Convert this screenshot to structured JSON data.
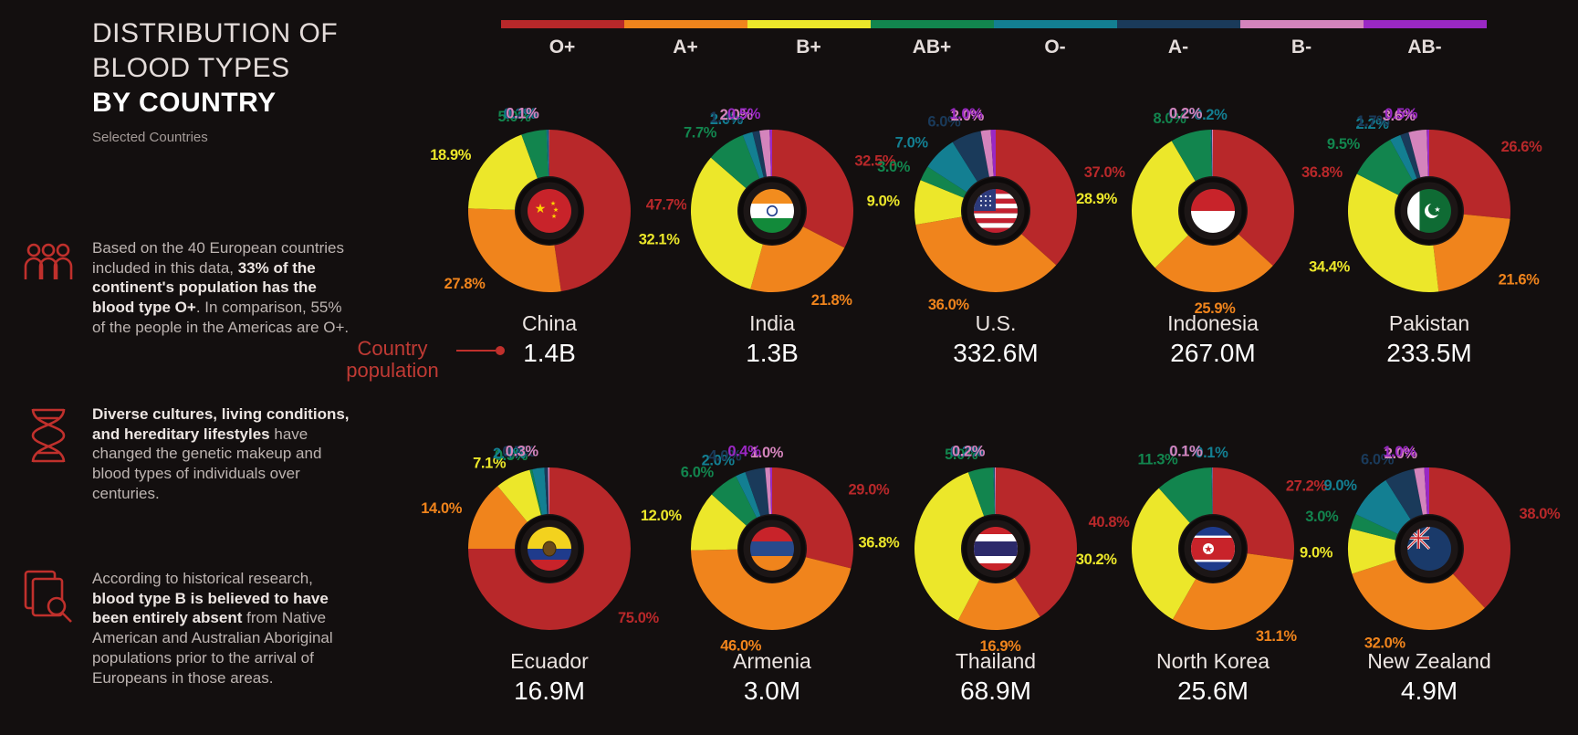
{
  "title": {
    "line1": "DISTRIBUTION OF",
    "line2": "BLOOD TYPES",
    "line3": "BY COUNTRY"
  },
  "subtitle": "Selected Countries",
  "facts": [
    {
      "icon": "people-icon",
      "segments": [
        {
          "text": "Based on the 40 European countries included in this data, ",
          "bold": false
        },
        {
          "text": "33% of the continent's population has the blood type O+",
          "bold": true
        },
        {
          "text": ". In comparison, 55% of the people in the Americas are O+.",
          "bold": false
        }
      ]
    },
    {
      "icon": "dna-icon",
      "segments": [
        {
          "text": "Diverse cultures, living conditions, and hereditary lifestyles",
          "bold": true
        },
        {
          "text": " have changed the genetic makeup and blood types of individuals over centuries.",
          "bold": false
        }
      ]
    },
    {
      "icon": "research-icon",
      "segments": [
        {
          "text": "According to historical research, ",
          "bold": false
        },
        {
          "text": "blood type B is believed to have been entirely absent",
          "bold": true
        },
        {
          "text": " from Native American and Australian Aboriginal populations prior to the arrival of Europeans in those areas.",
          "bold": false
        }
      ]
    }
  ],
  "callout": {
    "line1": "Country",
    "line2": "population"
  },
  "colors": {
    "O+": "#b8282a",
    "A+": "#f0841c",
    "B+": "#ece72a",
    "AB+": "#12854e",
    "O-": "#137f92",
    "A-": "#1a3a5a",
    "B-": "#d484bc",
    "AB-": "#9a28c4"
  },
  "chart_data": {
    "type": "pie",
    "blood_types": [
      "O+",
      "A+",
      "B+",
      "AB+",
      "O-",
      "A-",
      "B-",
      "AB-"
    ],
    "countries": [
      {
        "name": "China",
        "population": "1.4B",
        "flag": "china-flag-icon",
        "values": [
          47.7,
          27.8,
          18.9,
          5.0,
          0.3,
          0.2,
          0.1,
          null
        ],
        "labels": [
          "47.7%",
          "27.8%",
          "18.9%",
          "5.0%",
          "0.3%",
          "0.2%",
          "0.1%",
          ""
        ]
      },
      {
        "name": "India",
        "population": "1.3B",
        "flag": "india-flag-icon",
        "values": [
          32.5,
          21.8,
          32.1,
          7.7,
          2.0,
          1.4,
          2.0,
          0.5
        ],
        "labels": [
          "32.5%",
          "21.8%",
          "32.1%",
          "7.7%",
          "2.0%",
          "1.4%",
          "2.0%",
          "0.5%"
        ]
      },
      {
        "name": "U.S.",
        "population": "332.6M",
        "flag": "us-flag-icon",
        "values": [
          37.0,
          36.0,
          9.0,
          3.0,
          7.0,
          6.0,
          2.0,
          1.0
        ],
        "labels": [
          "37.0%",
          "36.0%",
          "9.0%",
          "3.0%",
          "7.0%",
          "6.0%",
          "2.0%",
          "1.0%"
        ]
      },
      {
        "name": "Indonesia",
        "population": "267.0M",
        "flag": "indonesia-flag-icon",
        "values": [
          36.8,
          25.9,
          28.9,
          8.0,
          0.2,
          0.1,
          0.2,
          null
        ],
        "labels": [
          "36.8%",
          "25.9%",
          "28.9%",
          "8.0%",
          "0.2%",
          "0.1%",
          "0.2%",
          ""
        ]
      },
      {
        "name": "Pakistan",
        "population": "233.5M",
        "flag": "pakistan-flag-icon",
        "values": [
          26.6,
          21.6,
          34.4,
          9.5,
          2.2,
          1.7,
          3.6,
          0.5
        ],
        "labels": [
          "26.6%",
          "21.6%",
          "34.4%",
          "9.5%",
          "2.2%",
          "1.7%",
          "3.6%",
          "0.5%"
        ]
      },
      {
        "name": "Ecuador",
        "population": "16.9M",
        "flag": "ecuador-flag-icon",
        "values": [
          75.0,
          14.0,
          7.1,
          0.5,
          2.4,
          0.7,
          0.3,
          null
        ],
        "labels": [
          "75.0%",
          "14.0%",
          "7.1%",
          "0.5%",
          "2.4%",
          "0.7%",
          "0.3%",
          ""
        ]
      },
      {
        "name": "Armenia",
        "population": "3.0M",
        "flag": "armenia-flag-icon",
        "values": [
          29.0,
          46.0,
          12.0,
          6.0,
          2.0,
          4.0,
          1.0,
          0.4
        ],
        "labels": [
          "29.0%",
          "46.0%",
          "12.0%",
          "6.0%",
          "2.0%",
          "4.0%",
          "1.0%",
          "0.4%"
        ]
      },
      {
        "name": "Thailand",
        "population": "68.9M",
        "flag": "thailand-flag-icon",
        "values": [
          40.8,
          16.9,
          36.8,
          5.0,
          0.2,
          0.1,
          0.2,
          null
        ],
        "labels": [
          "40.8%",
          "16.9%",
          "36.8%",
          "5.0%",
          "0.2%",
          "0.1%",
          "0.2%",
          ""
        ]
      },
      {
        "name": "North Korea",
        "population": "25.6M",
        "flag": "north-korea-flag-icon",
        "values": [
          27.2,
          31.1,
          30.2,
          11.3,
          0.1,
          0.1,
          0.1,
          null
        ],
        "labels": [
          "27.2%",
          "31.1%",
          "30.2%",
          "11.3%",
          "0.1%",
          "0.1%",
          "0.1%",
          ""
        ]
      },
      {
        "name": "New Zealand",
        "population": "4.9M",
        "flag": "new-zealand-flag-icon",
        "values": [
          38.0,
          32.0,
          9.0,
          3.0,
          9.0,
          6.0,
          2.0,
          1.0
        ],
        "labels": [
          "38.0%",
          "32.0%",
          "9.0%",
          "3.0%",
          "9.0%",
          "6.0%",
          "2.0%",
          "1.0%"
        ]
      }
    ]
  }
}
